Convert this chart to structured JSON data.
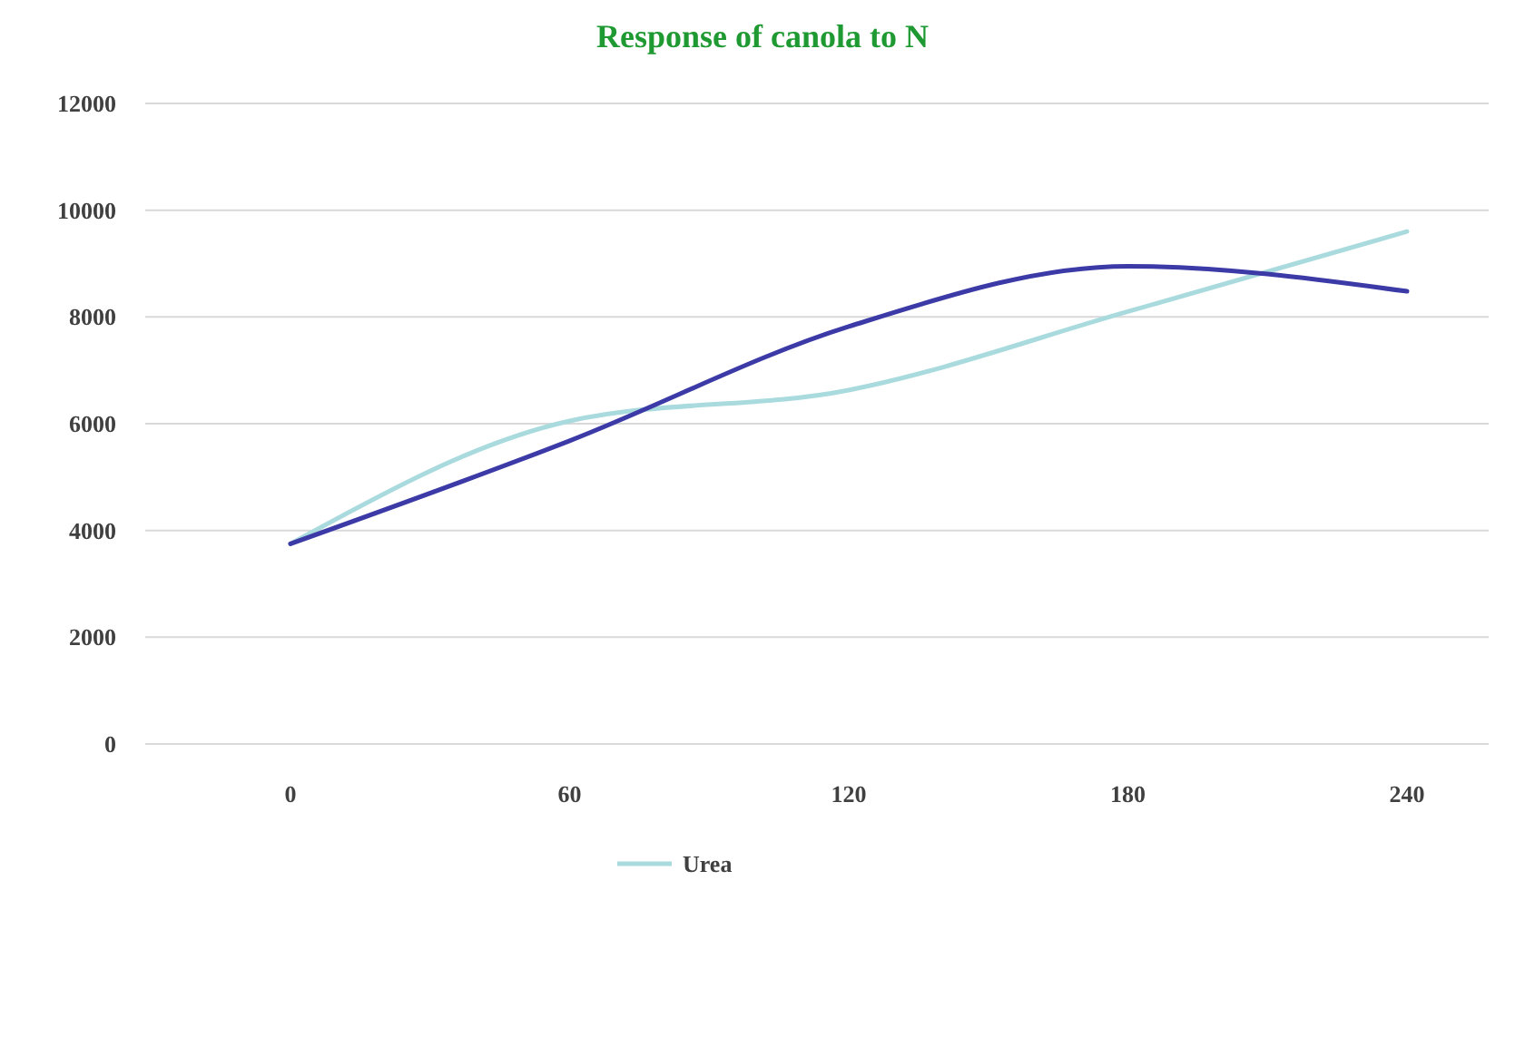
{
  "chart_data": {
    "type": "line",
    "title": "Response of canola to N",
    "categories": [
      "0",
      "60",
      "120",
      "180",
      "240"
    ],
    "series": [
      {
        "name": "Urea",
        "color": "#a9dadd",
        "values": [
          3750,
          6050,
          6630,
          8100,
          9600
        ]
      },
      {
        "color": "#3b3aa6",
        "values": [
          3750,
          5680,
          7820,
          8950,
          8480
        ]
      }
    ],
    "ylim": [
      0,
      12000
    ],
    "yticks": [
      0,
      2000,
      4000,
      6000,
      8000,
      10000,
      12000
    ],
    "grid": "y",
    "legend": "bottom",
    "marker": "none",
    "line_style": "solid"
  }
}
